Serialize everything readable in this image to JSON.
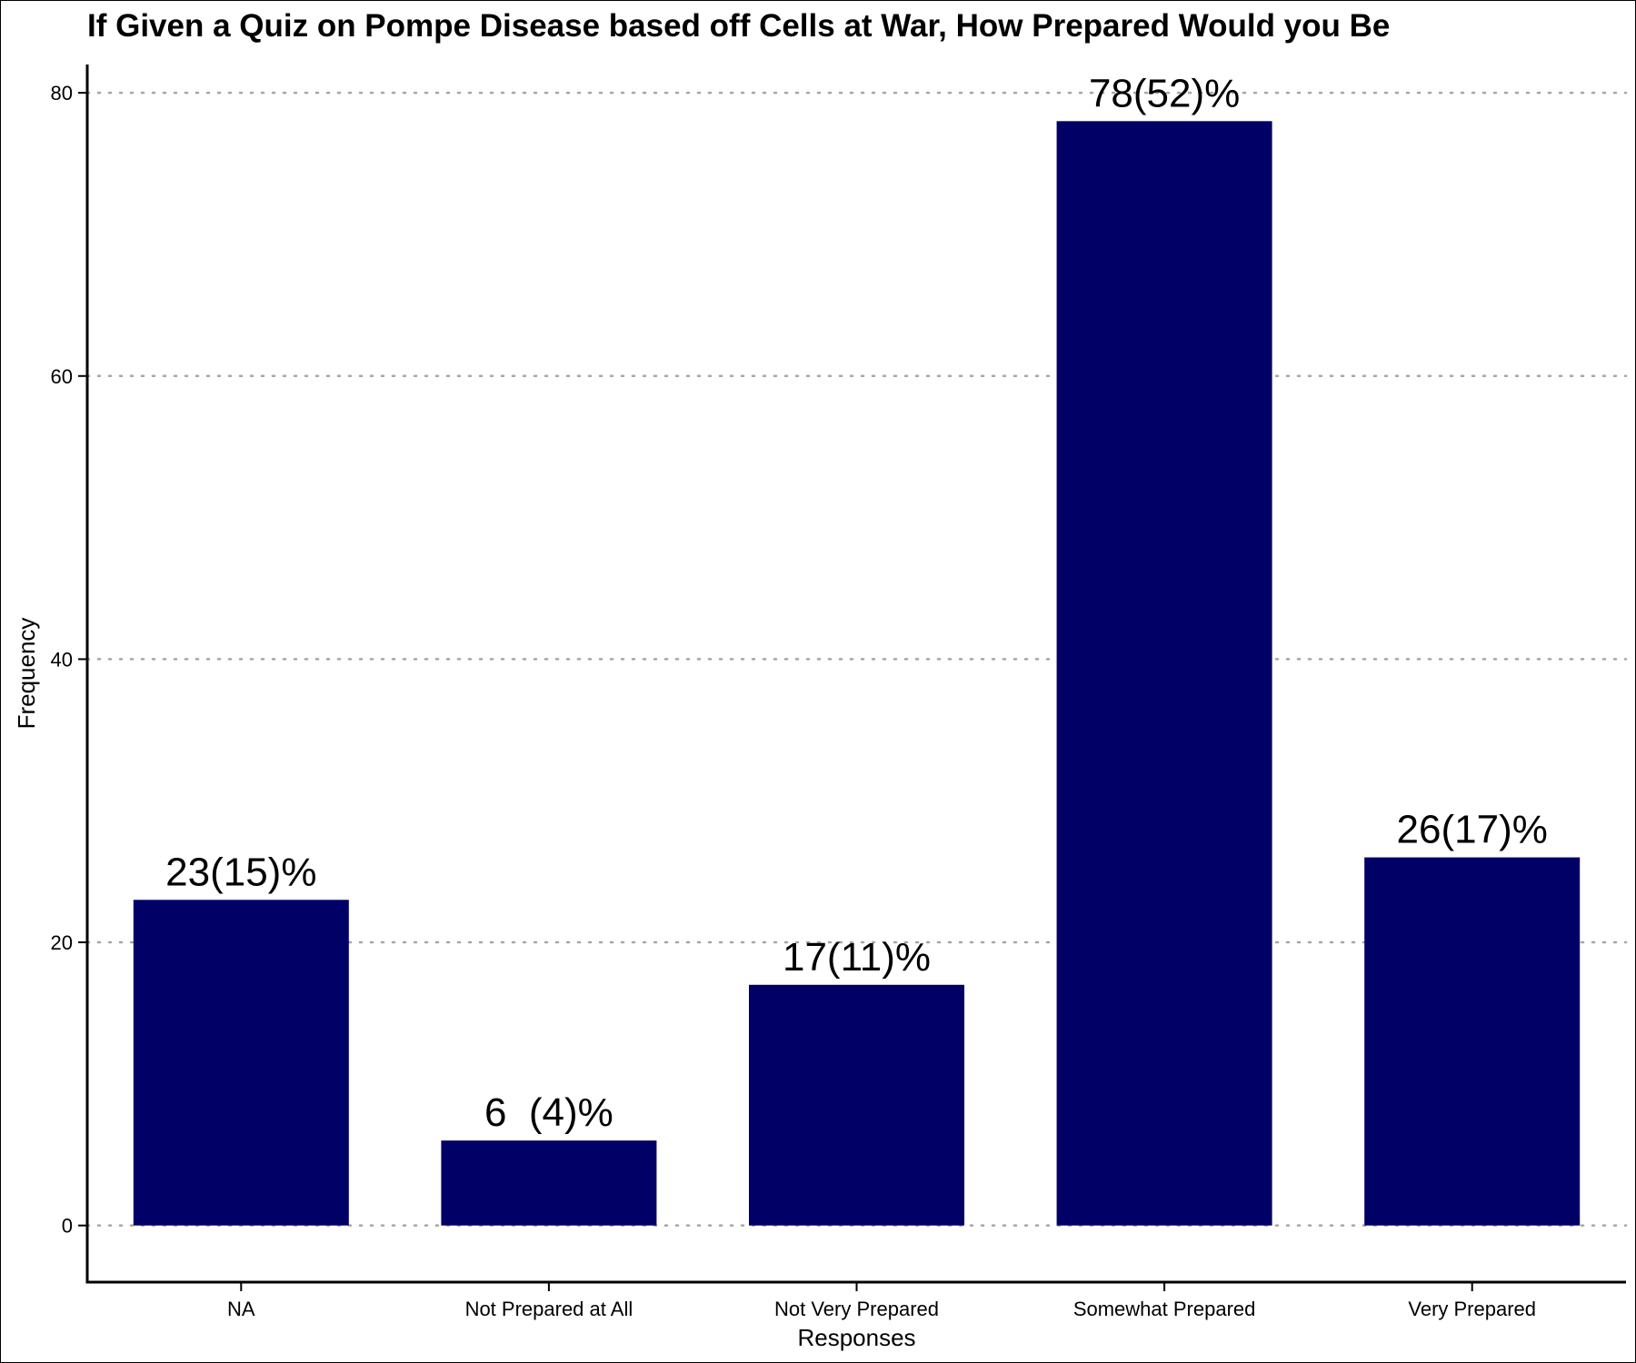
{
  "chart_data": {
    "type": "bar",
    "title": "If Given a Quiz on Pompe Disease based off Cells at War, How Prepared Would you Be",
    "xlabel": "Responses",
    "ylabel": "Frequency",
    "categories": [
      "NA",
      "Not Prepared at All",
      "Not Very Prepared",
      "Somewhat Prepared",
      "Very Prepared"
    ],
    "values": [
      23,
      6,
      17,
      78,
      26
    ],
    "data_labels": [
      "23(15)%",
      "6  (4)%",
      "17(11)%",
      "78(52)%",
      "26(17)%"
    ],
    "y_ticks": [
      0,
      20,
      40,
      60,
      80
    ],
    "ylim": [
      -4,
      82
    ],
    "grid": "horizontal dotted",
    "bar_color": "#000066"
  }
}
